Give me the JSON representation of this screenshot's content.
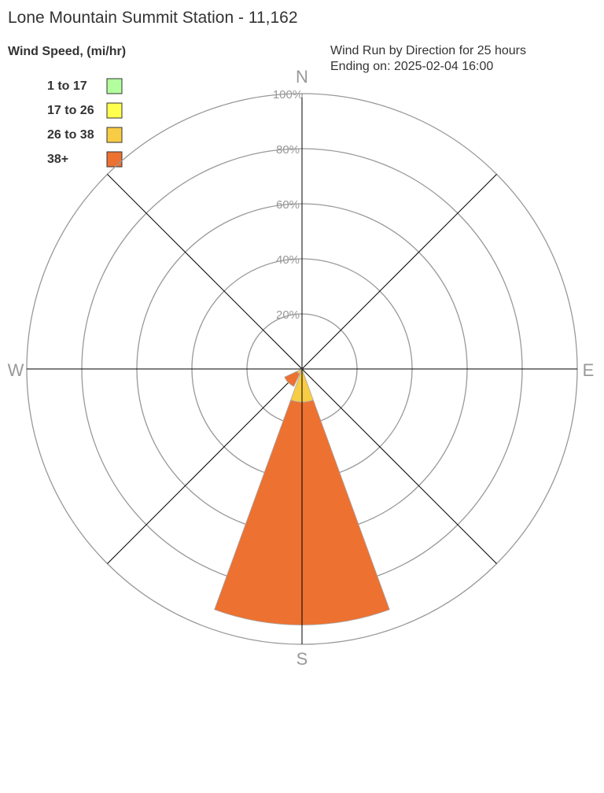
{
  "chart_data": {
    "type": "wind-rose",
    "title": "Lone Mountain Summit Station - 11,162",
    "legend_title": "Wind Speed, (mi/hr)",
    "subtitle_lines": [
      "Wind Run by Direction for 25 hours",
      "Ending on: 2025-02-04 16:00"
    ],
    "bins": [
      {
        "name": "1 to 17",
        "color": "#b3ff9e"
      },
      {
        "name": "17 to 26",
        "color": "#ffff4d"
      },
      {
        "name": "26 to 38",
        "color": "#f8cc45"
      },
      {
        "name": "38+",
        "color": "#ed7131"
      }
    ],
    "directions": [
      "N",
      "NE",
      "E",
      "SE",
      "S",
      "SW",
      "W",
      "NW"
    ],
    "compass_labels": {
      "N": "N",
      "E": "E",
      "S": "S",
      "W": "W"
    },
    "ring_labels": [
      "20%",
      "40%",
      "60%",
      "80%",
      "100%"
    ],
    "rmax": 100,
    "values": {
      "S": [
        0,
        0,
        12,
        81
      ],
      "SW": [
        0,
        0,
        2,
        5
      ]
    },
    "legend_placement": "top-left"
  }
}
